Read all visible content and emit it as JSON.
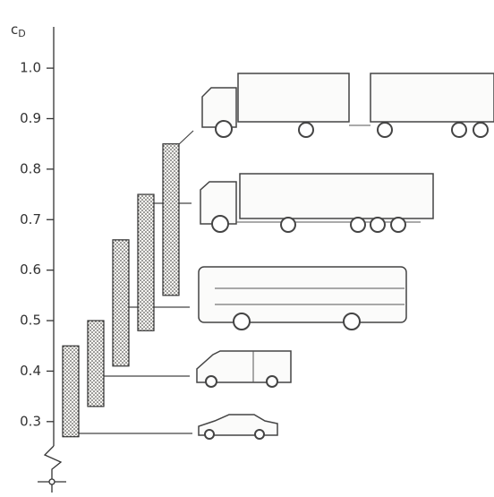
{
  "chart_data": {
    "type": "floating_bar",
    "y_label_base": "c",
    "y_label_subscript": "D",
    "low": [
      0.27,
      0.33,
      0.41,
      0.48,
      0.55
    ],
    "high": [
      0.45,
      0.5,
      0.66,
      0.75,
      0.85
    ],
    "color": "#f4f2ee",
    "ylim": [
      0.25,
      1.08
    ],
    "yticks": [
      0.3,
      0.4,
      0.5,
      0.6,
      0.7,
      0.8,
      0.9,
      {
        "value": 1,
        "label": "1.0"
      }
    ]
  }
}
